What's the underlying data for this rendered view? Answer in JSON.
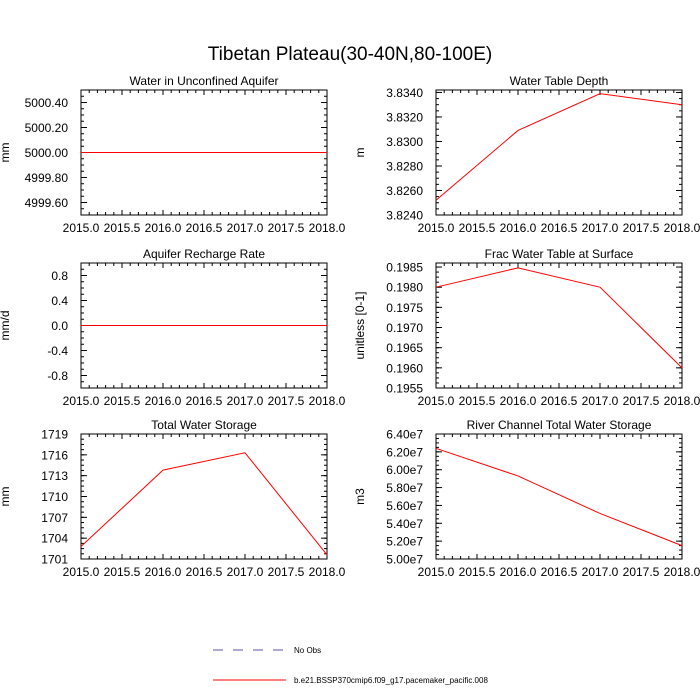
{
  "title": "Tibetan Plateau(30-40N,80-100E)",
  "colors": {
    "series": "#ff0000",
    "obs": "#5a55a5",
    "axis": "#000000"
  },
  "legend": {
    "items": [
      {
        "label": "No Obs",
        "style": "dashed",
        "color": "#5a55a5"
      },
      {
        "label": "b.e21.BSSP370cmip6.f09_g17.pacemaker_pacific.008",
        "style": "solid",
        "color": "#ff0000"
      }
    ]
  },
  "chart_data": [
    {
      "type": "line",
      "title": "Water in Unconfined Aquifer",
      "ylabel": "mm",
      "xlim": [
        2015.0,
        2018.0
      ],
      "ylim": [
        4999.5,
        5000.5
      ],
      "xticks": [
        2015.0,
        2015.5,
        2016.0,
        2016.5,
        2017.0,
        2017.5,
        2018.0
      ],
      "xtick_labels": [
        "2015.0",
        "2015.5",
        "2016.0",
        "2016.5",
        "2017.0",
        "2017.5",
        "2018.0"
      ],
      "yticks": [
        4999.6,
        4999.8,
        5000.0,
        5000.2,
        5000.4
      ],
      "ytick_labels": [
        "4999.60",
        "4999.80",
        "5000.00",
        "5000.20",
        "5000.40"
      ],
      "x": [
        2015.0,
        2016.0,
        2017.0,
        2018.0
      ],
      "series": [
        {
          "values": [
            5000.0,
            5000.0,
            5000.0,
            5000.0
          ]
        }
      ]
    },
    {
      "type": "line",
      "title": "Water Table Depth",
      "ylabel": "m",
      "xlim": [
        2015.0,
        2018.0
      ],
      "ylim": [
        3.824,
        3.8342
      ],
      "xticks": [
        2015.0,
        2015.5,
        2016.0,
        2016.5,
        2017.0,
        2017.5,
        2018.0
      ],
      "xtick_labels": [
        "2015.0",
        "2015.5",
        "2016.0",
        "2016.5",
        "2017.0",
        "2017.5",
        "2018.0"
      ],
      "yticks": [
        3.824,
        3.826,
        3.828,
        3.83,
        3.832,
        3.834
      ],
      "ytick_labels": [
        "3.8240",
        "3.8260",
        "3.8280",
        "3.8300",
        "3.8320",
        "3.8340"
      ],
      "x": [
        2015.0,
        2016.0,
        2017.0,
        2018.0
      ],
      "series": [
        {
          "values": [
            3.8252,
            3.8309,
            3.8339,
            3.833
          ]
        }
      ]
    },
    {
      "type": "line",
      "title": "Aquifer Recharge Rate",
      "ylabel": "mm/d",
      "xlim": [
        2015.0,
        2018.0
      ],
      "ylim": [
        -1.0,
        1.0
      ],
      "xticks": [
        2015.0,
        2015.5,
        2016.0,
        2016.5,
        2017.0,
        2017.5,
        2018.0
      ],
      "xtick_labels": [
        "2015.0",
        "2015.5",
        "2016.0",
        "2016.5",
        "2017.0",
        "2017.5",
        "2018.0"
      ],
      "yticks": [
        -0.8,
        -0.4,
        0.0,
        0.4,
        0.8
      ],
      "ytick_labels": [
        "-0.8",
        "-0.4",
        "0.0",
        "0.4",
        "0.8"
      ],
      "x": [
        2015.0,
        2016.0,
        2017.0,
        2018.0
      ],
      "series": [
        {
          "values": [
            0.0,
            0.0,
            0.0,
            0.0
          ]
        }
      ]
    },
    {
      "type": "line",
      "title": "Frac Water Table at Surface",
      "ylabel": "unitless [0-1]",
      "xlim": [
        2015.0,
        2018.0
      ],
      "ylim": [
        0.1955,
        0.1986
      ],
      "xticks": [
        2015.0,
        2015.5,
        2016.0,
        2016.5,
        2017.0,
        2017.5,
        2018.0
      ],
      "xtick_labels": [
        "2015.0",
        "2015.5",
        "2016.0",
        "2016.5",
        "2017.0",
        "2017.5",
        "2018.0"
      ],
      "yticks": [
        0.1955,
        0.196,
        0.1965,
        0.197,
        0.1975,
        0.198,
        0.1985
      ],
      "ytick_labels": [
        "0.1955",
        "0.1960",
        "0.1965",
        "0.1970",
        "0.1975",
        "0.1980",
        "0.1985"
      ],
      "x": [
        2015.0,
        2016.0,
        2017.0,
        2018.0
      ],
      "series": [
        {
          "values": [
            0.198,
            0.19848,
            0.198,
            0.196
          ]
        }
      ]
    },
    {
      "type": "line",
      "title": "Total Water Storage",
      "ylabel": "mm",
      "xlim": [
        2015.0,
        2018.0
      ],
      "ylim": [
        1701.0,
        1719.0
      ],
      "xticks": [
        2015.0,
        2015.5,
        2016.0,
        2016.5,
        2017.0,
        2017.5,
        2018.0
      ],
      "xtick_labels": [
        "2015.0",
        "2015.5",
        "2016.0",
        "2016.5",
        "2017.0",
        "2017.5",
        "2018.0"
      ],
      "yticks": [
        1701,
        1704,
        1707,
        1710,
        1713,
        1716,
        1719
      ],
      "ytick_labels": [
        "1701",
        "1704",
        "1707",
        "1710",
        "1713",
        "1716",
        "1719"
      ],
      "x": [
        2015.0,
        2016.0,
        2017.0,
        2018.0
      ],
      "series": [
        {
          "values": [
            1702.8,
            1713.8,
            1716.3,
            1701.6
          ]
        }
      ]
    },
    {
      "type": "line",
      "title": "River Channel Total Water Storage",
      "ylabel": "m3",
      "xlim": [
        2015.0,
        2018.0
      ],
      "ylim": [
        50000000,
        64000000
      ],
      "xticks": [
        2015.0,
        2015.5,
        2016.0,
        2016.5,
        2017.0,
        2017.5,
        2018.0
      ],
      "xtick_labels": [
        "2015.0",
        "2015.5",
        "2016.0",
        "2016.5",
        "2017.0",
        "2017.5",
        "2018.0"
      ],
      "yticks": [
        50000000,
        52000000,
        54000000,
        56000000,
        58000000,
        60000000,
        62000000,
        64000000
      ],
      "ytick_labels": [
        "5.00e7",
        "5.20e7",
        "5.40e7",
        "5.60e7",
        "5.80e7",
        "6.00e7",
        "6.20e7",
        "6.40e7"
      ],
      "x": [
        2015.0,
        2016.0,
        2017.0,
        2018.0
      ],
      "series": [
        {
          "values": [
            62400000,
            59300000,
            55100000,
            51500000
          ]
        }
      ]
    }
  ]
}
